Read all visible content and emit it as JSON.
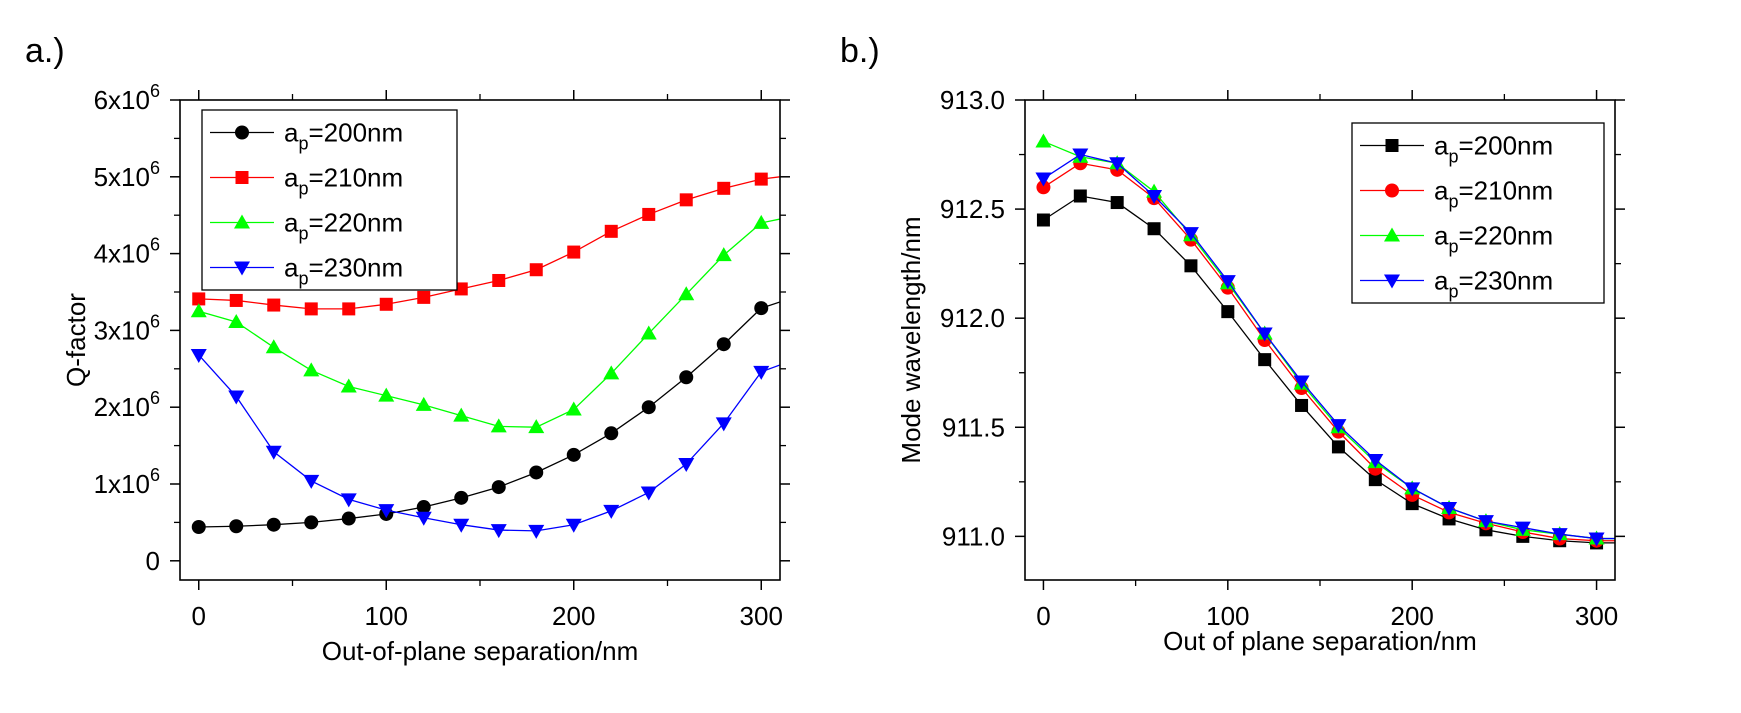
{
  "chart_data": [
    {
      "panel_label": "a.)",
      "type": "line",
      "markers": true,
      "xlabel": "Out-of-plane separation/nm",
      "ylabel": "Q-factor",
      "xlim": [
        -10,
        310
      ],
      "ylim": [
        -250000,
        6000000
      ],
      "xticks": [
        0,
        100,
        200,
        300
      ],
      "xtick_labels": [
        "0",
        "100",
        "200",
        "300"
      ],
      "yticks": [
        0,
        1000000,
        2000000,
        3000000,
        4000000,
        5000000,
        6000000
      ],
      "ytick_labels": [
        {
          "mant": "0",
          "exp": ""
        },
        {
          "mant": "1x10",
          "exp": "6"
        },
        {
          "mant": "2x10",
          "exp": "6"
        },
        {
          "mant": "3x10",
          "exp": "6"
        },
        {
          "mant": "4x10",
          "exp": "6"
        },
        {
          "mant": "5x10",
          "exp": "6"
        },
        {
          "mant": "6x10",
          "exp": "6"
        }
      ],
      "legend_position": "top-left",
      "x": [
        0,
        20,
        40,
        60,
        80,
        100,
        120,
        140,
        160,
        180,
        200,
        220,
        240,
        260,
        280,
        300,
        310
      ],
      "series": [
        {
          "name": "a_p=200nm",
          "label_main": "a",
          "label_sub": "p",
          "label_rest": "=200nm",
          "color": "#000000",
          "marker": "circle",
          "values": [
            440000,
            450000,
            470000,
            500000,
            550000,
            610000,
            700000,
            820000,
            960000,
            1150000,
            1380000,
            1660000,
            2000000,
            2390000,
            2820000,
            3290000,
            3370000
          ]
        },
        {
          "name": "a_p=210nm",
          "label_main": "a",
          "label_sub": "p",
          "label_rest": "=210nm",
          "color": "#ff0000",
          "marker": "square",
          "values": [
            3410000,
            3390000,
            3330000,
            3280000,
            3280000,
            3340000,
            3430000,
            3540000,
            3650000,
            3790000,
            4020000,
            4290000,
            4510000,
            4700000,
            4850000,
            4970000,
            5000000
          ]
        },
        {
          "name": "a_p=220nm",
          "label_main": "a",
          "label_sub": "p",
          "label_rest": "=220nm",
          "color": "#00ff00",
          "marker": "triangle-up",
          "values": [
            3250000,
            3110000,
            2780000,
            2480000,
            2270000,
            2150000,
            2030000,
            1890000,
            1750000,
            1740000,
            1970000,
            2440000,
            2960000,
            3470000,
            3980000,
            4400000,
            4450000
          ]
        },
        {
          "name": "a_p=230nm",
          "label_main": "a",
          "label_sub": "p",
          "label_rest": "=230nm",
          "color": "#0000ff",
          "marker": "triangle-down",
          "values": [
            2680000,
            2140000,
            1420000,
            1040000,
            800000,
            660000,
            560000,
            470000,
            400000,
            390000,
            470000,
            650000,
            890000,
            1260000,
            1790000,
            2460000,
            2550000
          ]
        }
      ]
    },
    {
      "panel_label": "b.)",
      "type": "line",
      "markers": true,
      "xlabel": "Out of plane separation/nm",
      "ylabel": "Mode wavelength/nm",
      "xlim": [
        -10,
        310
      ],
      "ylim": [
        910.8,
        913.0
      ],
      "xticks": [
        0,
        100,
        200,
        300
      ],
      "xtick_labels": [
        "0",
        "100",
        "200",
        "300"
      ],
      "yticks": [
        911.0,
        911.5,
        912.0,
        912.5,
        913.0
      ],
      "ytick_labels": [
        {
          "mant": "911.0",
          "exp": ""
        },
        {
          "mant": "911.5",
          "exp": ""
        },
        {
          "mant": "912.0",
          "exp": ""
        },
        {
          "mant": "912.5",
          "exp": ""
        },
        {
          "mant": "913.0",
          "exp": ""
        }
      ],
      "legend_position": "top-right",
      "x": [
        0,
        20,
        40,
        60,
        80,
        100,
        120,
        140,
        160,
        180,
        200,
        220,
        240,
        260,
        280,
        300,
        310
      ],
      "series": [
        {
          "name": "a_p=200nm",
          "label_main": "a",
          "label_sub": "p",
          "label_rest": "=200nm",
          "color": "#000000",
          "marker": "square",
          "values": [
            912.45,
            912.56,
            912.53,
            912.41,
            912.24,
            912.03,
            911.81,
            911.6,
            911.41,
            911.26,
            911.15,
            911.08,
            911.03,
            911.0,
            910.98,
            910.97,
            910.97
          ]
        },
        {
          "name": "a_p=210nm",
          "label_main": "a",
          "label_sub": "p",
          "label_rest": "=210nm",
          "color": "#ff0000",
          "marker": "circle",
          "values": [
            912.6,
            912.71,
            912.68,
            912.55,
            912.36,
            912.14,
            911.9,
            911.68,
            911.48,
            911.31,
            911.19,
            911.11,
            911.06,
            911.02,
            910.99,
            910.98,
            910.98
          ]
        },
        {
          "name": "a_p=220nm",
          "label_main": "a",
          "label_sub": "p",
          "label_rest": "=220nm",
          "color": "#00ff00",
          "marker": "triangle-up",
          "values": [
            912.81,
            912.74,
            912.71,
            912.58,
            912.38,
            912.16,
            911.93,
            911.7,
            911.5,
            911.34,
            911.22,
            911.13,
            911.07,
            911.03,
            911.01,
            910.99,
            910.99
          ]
        },
        {
          "name": "a_p=230nm",
          "label_main": "a",
          "label_sub": "p",
          "label_rest": "=230nm",
          "color": "#0000ff",
          "marker": "triangle-down",
          "values": [
            912.64,
            912.75,
            912.71,
            912.56,
            912.39,
            912.17,
            911.93,
            911.71,
            911.51,
            911.35,
            911.22,
            911.13,
            911.07,
            911.04,
            911.01,
            910.99,
            910.99
          ]
        }
      ]
    }
  ]
}
